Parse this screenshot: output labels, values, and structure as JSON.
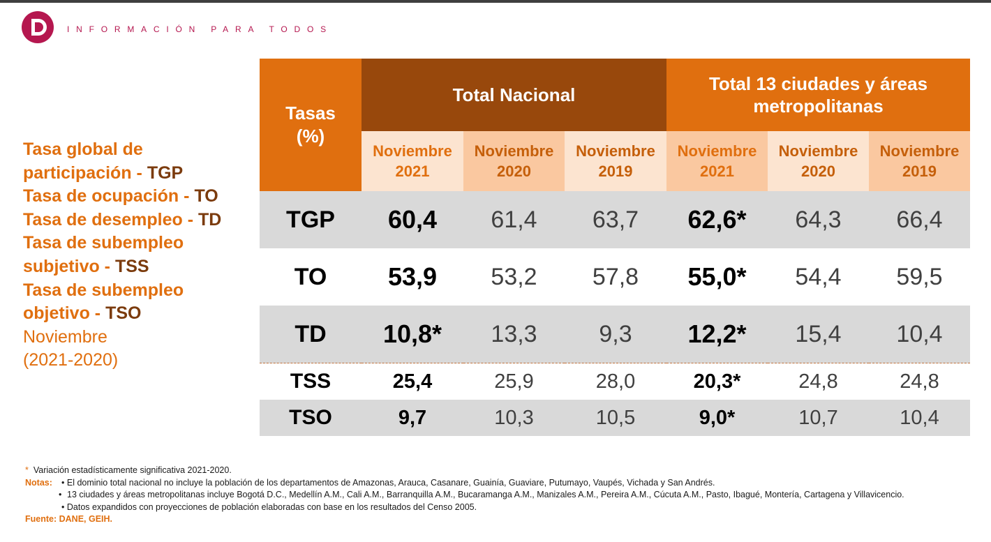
{
  "header": {
    "logo_letter": "D",
    "tagline": "INFORMACIÓN PARA TODOS",
    "brand_color": "#b5174f"
  },
  "sidebar": {
    "lines": [
      {
        "text": "Tasa global de",
        "abbr": ""
      },
      {
        "text": "participación - ",
        "abbr": "TGP"
      },
      {
        "text": "Tasa de ocupación - ",
        "abbr": "TO"
      },
      {
        "text": "Tasa de desempleo - ",
        "abbr": "TD"
      },
      {
        "text": "Tasa de subempleo",
        "abbr": ""
      },
      {
        "text": "subjetivo - ",
        "abbr": "TSS"
      },
      {
        "text": "Tasa de subempleo",
        "abbr": ""
      },
      {
        "text": "objetivo - ",
        "abbr": "TSO"
      }
    ],
    "period_label": "Noviembre",
    "period_range": "(2021-2020)"
  },
  "table": {
    "tasas_header_line1": "Tasas",
    "tasas_header_line2": "(%)",
    "group_nacional": "Total Nacional",
    "group_metro_line1": "Total 13 ciudades y áreas",
    "group_metro_line2": "metropolitanas",
    "subheaders": [
      {
        "month": "Noviembre",
        "year": "2021"
      },
      {
        "month": "Noviembre",
        "year": "2020"
      },
      {
        "month": "Noviembre",
        "year": "2019"
      },
      {
        "month": "Noviembre",
        "year": "2021"
      },
      {
        "month": "Noviembre",
        "year": "2020"
      },
      {
        "month": "Noviembre",
        "year": "2019"
      }
    ],
    "rows": [
      {
        "label": "TGP",
        "values": [
          "60,4",
          "61,4",
          "63,7",
          "62,6*",
          "64,3",
          "66,4"
        ]
      },
      {
        "label": "TO",
        "values": [
          "53,9",
          "53,2",
          "57,8",
          "55,0*",
          "54,4",
          "59,5"
        ]
      },
      {
        "label": "TD",
        "values": [
          "10,8*",
          "13,3",
          "9,3",
          "12,2*",
          "15,4",
          "10,4"
        ]
      },
      {
        "label": "TSS",
        "values": [
          "25,4",
          "25,9",
          "28,0",
          "20,3*",
          "24,8",
          "24,8"
        ]
      },
      {
        "label": "TSO",
        "values": [
          "9,7",
          "10,3",
          "10,5",
          "9,0*",
          "10,7",
          "10,4"
        ]
      }
    ]
  },
  "notes": {
    "asterisk": "*",
    "significance": "Variación estadísticamente significativa 2021-2020.",
    "notas_label": "Notas:",
    "items": [
      "El dominio total nacional no incluye la población de los departamentos de Amazonas, Arauca, Casanare, Guainía, Guaviare, Putumayo, Vaupés, Vichada y San Andrés.",
      "13 ciudades y áreas metropolitanas incluye Bogotá D.C., Medellín A.M., Cali A.M., Barranquilla A.M., Bucaramanga A.M., Manizales A.M., Pereira A.M., Cúcuta A.M., Pasto, Ibagué, Montería, Cartagena y Villavicencio.",
      "Datos expandidos con proyecciones de población elaboradas con base en los resultados del Censo 2005."
    ],
    "bullet": "•",
    "fuente": "Fuente: DANE, GEIH."
  },
  "colors": {
    "orange": "#e06f0f",
    "brown": "#98480c",
    "light_peach": "#fce4d0",
    "mid_peach": "#fac8a0",
    "gray_row": "#d9d9d9"
  }
}
